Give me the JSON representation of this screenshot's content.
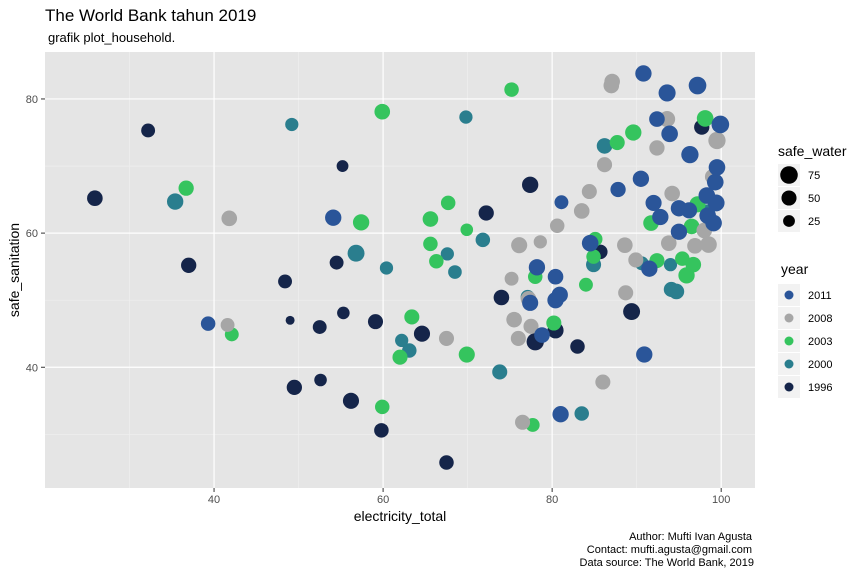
{
  "chart_data": {
    "type": "scatter",
    "title": "The World Bank tahun 2019",
    "subtitle": "grafik plot_household.",
    "xlabel": "electricity_total",
    "ylabel": "safe_sanitation",
    "xlim": [
      20,
      104
    ],
    "ylim": [
      22,
      87
    ],
    "x_ticks": [
      40,
      60,
      80,
      100
    ],
    "y_ticks": [
      40,
      60,
      80
    ],
    "grid": true,
    "legend_position": "right",
    "size_legend": {
      "title": "safe_water",
      "entries": [
        {
          "label": "75",
          "value": 75
        },
        {
          "label": "50",
          "value": 50
        },
        {
          "label": "25",
          "value": 25
        }
      ]
    },
    "color_legend": {
      "title": "year",
      "entries": [
        {
          "label": "2011",
          "color": "#2a5599"
        },
        {
          "label": "2008",
          "color": "#a6a6a6"
        },
        {
          "label": "2003",
          "color": "#35c45e"
        },
        {
          "label": "2000",
          "color": "#2a7e8e"
        },
        {
          "label": "1996",
          "color": "#15254a"
        }
      ]
    },
    "caption": [
      "Author: Mufti Ivan Agusta",
      "Contact: mufti.agusta@gmail.com",
      "Data source: The World Bank, 2019"
    ],
    "series": [
      {
        "name": "1996",
        "points": [
          {
            "x": 25.9,
            "y": 65.2,
            "size": 55
          },
          {
            "x": 32.2,
            "y": 75.3,
            "size": 40
          },
          {
            "x": 37.0,
            "y": 55.2,
            "size": 52
          },
          {
            "x": 48.4,
            "y": 52.8,
            "size": 40
          },
          {
            "x": 49.0,
            "y": 47.0,
            "size": 10
          },
          {
            "x": 49.5,
            "y": 37.0,
            "size": 52
          },
          {
            "x": 52.5,
            "y": 46.0,
            "size": 40
          },
          {
            "x": 52.6,
            "y": 38.1,
            "size": 30
          },
          {
            "x": 54.5,
            "y": 55.6,
            "size": 40
          },
          {
            "x": 55.2,
            "y": 70.0,
            "size": 25
          },
          {
            "x": 55.3,
            "y": 48.1,
            "size": 30
          },
          {
            "x": 56.2,
            "y": 35.0,
            "size": 60
          },
          {
            "x": 59.1,
            "y": 46.8,
            "size": 50
          },
          {
            "x": 59.8,
            "y": 30.6,
            "size": 45
          },
          {
            "x": 64.6,
            "y": 45.0,
            "size": 60
          },
          {
            "x": 67.5,
            "y": 25.8,
            "size": 45
          },
          {
            "x": 72.2,
            "y": 63.0,
            "size": 52
          },
          {
            "x": 74.0,
            "y": 50.4,
            "size": 55
          },
          {
            "x": 77.4,
            "y": 67.2,
            "size": 62
          },
          {
            "x": 78.0,
            "y": 43.8,
            "size": 72
          },
          {
            "x": 80.4,
            "y": 45.5,
            "size": 60
          },
          {
            "x": 83.0,
            "y": 43.1,
            "size": 45
          },
          {
            "x": 85.7,
            "y": 57.2,
            "size": 45
          },
          {
            "x": 89.4,
            "y": 48.3,
            "size": 68
          },
          {
            "x": 97.7,
            "y": 75.8,
            "size": 52
          }
        ]
      },
      {
        "name": "2000",
        "points": [
          {
            "x": 49.2,
            "y": 76.2,
            "size": 35
          },
          {
            "x": 35.4,
            "y": 64.7,
            "size": 62
          },
          {
            "x": 56.8,
            "y": 57.0,
            "size": 68
          },
          {
            "x": 60.4,
            "y": 54.8,
            "size": 35
          },
          {
            "x": 62.2,
            "y": 44.0,
            "size": 35
          },
          {
            "x": 63.1,
            "y": 42.5,
            "size": 45
          },
          {
            "x": 67.6,
            "y": 56.9,
            "size": 35
          },
          {
            "x": 68.5,
            "y": 54.2,
            "size": 38
          },
          {
            "x": 69.8,
            "y": 77.3,
            "size": 35
          },
          {
            "x": 73.8,
            "y": 39.3,
            "size": 50
          },
          {
            "x": 71.8,
            "y": 59.0,
            "size": 45
          },
          {
            "x": 77.1,
            "y": 50.5,
            "size": 40
          },
          {
            "x": 83.5,
            "y": 33.1,
            "size": 45
          },
          {
            "x": 84.9,
            "y": 55.3,
            "size": 50
          },
          {
            "x": 86.2,
            "y": 73.0,
            "size": 55
          },
          {
            "x": 90.6,
            "y": 55.5,
            "size": 40
          },
          {
            "x": 94.0,
            "y": 55.3,
            "size": 35
          },
          {
            "x": 94.1,
            "y": 51.6,
            "size": 50
          },
          {
            "x": 94.7,
            "y": 51.3,
            "size": 55
          },
          {
            "x": 98.4,
            "y": 63.2,
            "size": 45
          }
        ]
      },
      {
        "name": "2003",
        "points": [
          {
            "x": 36.7,
            "y": 66.7,
            "size": 52
          },
          {
            "x": 42.1,
            "y": 44.9,
            "size": 40
          },
          {
            "x": 57.4,
            "y": 61.6,
            "size": 62
          },
          {
            "x": 59.9,
            "y": 78.1,
            "size": 55
          },
          {
            "x": 59.9,
            "y": 34.1,
            "size": 45
          },
          {
            "x": 62.0,
            "y": 41.5,
            "size": 50
          },
          {
            "x": 63.4,
            "y": 47.5,
            "size": 50
          },
          {
            "x": 65.6,
            "y": 62.1,
            "size": 55
          },
          {
            "x": 65.6,
            "y": 58.4,
            "size": 45
          },
          {
            "x": 66.3,
            "y": 55.8,
            "size": 45
          },
          {
            "x": 67.7,
            "y": 64.5,
            "size": 45
          },
          {
            "x": 69.9,
            "y": 60.5,
            "size": 30
          },
          {
            "x": 69.9,
            "y": 41.9,
            "size": 60
          },
          {
            "x": 75.2,
            "y": 81.4,
            "size": 45
          },
          {
            "x": 77.7,
            "y": 31.4,
            "size": 40
          },
          {
            "x": 78.0,
            "y": 53.5,
            "size": 45
          },
          {
            "x": 80.2,
            "y": 46.6,
            "size": 50
          },
          {
            "x": 84.0,
            "y": 52.3,
            "size": 40
          },
          {
            "x": 84.9,
            "y": 56.5,
            "size": 45
          },
          {
            "x": 85.1,
            "y": 59.1,
            "size": 45
          },
          {
            "x": 87.7,
            "y": 73.5,
            "size": 50
          },
          {
            "x": 89.6,
            "y": 75.0,
            "size": 62
          },
          {
            "x": 91.7,
            "y": 61.5,
            "size": 55
          },
          {
            "x": 92.4,
            "y": 55.9,
            "size": 50
          },
          {
            "x": 95.4,
            "y": 56.2,
            "size": 45
          },
          {
            "x": 95.9,
            "y": 53.7,
            "size": 62
          },
          {
            "x": 96.5,
            "y": 61.0,
            "size": 55
          },
          {
            "x": 96.7,
            "y": 55.3,
            "size": 55
          },
          {
            "x": 97.2,
            "y": 64.3,
            "size": 60
          },
          {
            "x": 98.1,
            "y": 77.1,
            "size": 65
          }
        ]
      },
      {
        "name": "2008",
        "points": [
          {
            "x": 41.8,
            "y": 62.2,
            "size": 55
          },
          {
            "x": 41.6,
            "y": 46.3,
            "size": 40
          },
          {
            "x": 67.5,
            "y": 44.3,
            "size": 50
          },
          {
            "x": 75.5,
            "y": 47.1,
            "size": 55
          },
          {
            "x": 75.2,
            "y": 53.2,
            "size": 40
          },
          {
            "x": 76.1,
            "y": 58.2,
            "size": 60
          },
          {
            "x": 76.0,
            "y": 44.3,
            "size": 50
          },
          {
            "x": 76.5,
            "y": 31.8,
            "size": 50
          },
          {
            "x": 77.2,
            "y": 50.2,
            "size": 55
          },
          {
            "x": 77.5,
            "y": 46.1,
            "size": 50
          },
          {
            "x": 78.6,
            "y": 58.7,
            "size": 35
          },
          {
            "x": 80.6,
            "y": 61.1,
            "size": 45
          },
          {
            "x": 83.5,
            "y": 63.3,
            "size": 55
          },
          {
            "x": 84.4,
            "y": 66.2,
            "size": 50
          },
          {
            "x": 86.2,
            "y": 70.2,
            "size": 50
          },
          {
            "x": 86.0,
            "y": 37.8,
            "size": 50
          },
          {
            "x": 87.0,
            "y": 82.0,
            "size": 55
          },
          {
            "x": 87.1,
            "y": 82.6,
            "size": 55
          },
          {
            "x": 88.6,
            "y": 58.2,
            "size": 55
          },
          {
            "x": 88.7,
            "y": 51.1,
            "size": 50
          },
          {
            "x": 89.9,
            "y": 56.0,
            "size": 50
          },
          {
            "x": 92.4,
            "y": 72.7,
            "size": 52
          },
          {
            "x": 93.6,
            "y": 77.0,
            "size": 60
          },
          {
            "x": 93.8,
            "y": 58.5,
            "size": 55
          },
          {
            "x": 94.2,
            "y": 65.9,
            "size": 55
          },
          {
            "x": 96.9,
            "y": 58.1,
            "size": 55
          },
          {
            "x": 98.0,
            "y": 60.4,
            "size": 55
          },
          {
            "x": 98.5,
            "y": 58.3,
            "size": 65
          },
          {
            "x": 99.5,
            "y": 73.8,
            "size": 72
          },
          {
            "x": 99.0,
            "y": 68.4,
            "size": 55
          }
        ]
      },
      {
        "name": "2011",
        "points": [
          {
            "x": 39.3,
            "y": 46.5,
            "size": 45
          },
          {
            "x": 54.1,
            "y": 62.3,
            "size": 62
          },
          {
            "x": 77.4,
            "y": 49.6,
            "size": 60
          },
          {
            "x": 78.2,
            "y": 54.9,
            "size": 62
          },
          {
            "x": 78.8,
            "y": 44.8,
            "size": 55
          },
          {
            "x": 80.4,
            "y": 53.5,
            "size": 55
          },
          {
            "x": 80.4,
            "y": 50.0,
            "size": 62
          },
          {
            "x": 80.9,
            "y": 50.8,
            "size": 62
          },
          {
            "x": 81.1,
            "y": 64.6,
            "size": 40
          },
          {
            "x": 81.0,
            "y": 33.0,
            "size": 62
          },
          {
            "x": 84.5,
            "y": 58.5,
            "size": 65
          },
          {
            "x": 87.8,
            "y": 66.5,
            "size": 52
          },
          {
            "x": 90.5,
            "y": 68.1,
            "size": 62
          },
          {
            "x": 90.8,
            "y": 83.8,
            "size": 62
          },
          {
            "x": 90.9,
            "y": 41.9,
            "size": 62
          },
          {
            "x": 91.5,
            "y": 54.7,
            "size": 62
          },
          {
            "x": 92.0,
            "y": 64.5,
            "size": 60
          },
          {
            "x": 92.4,
            "y": 77.0,
            "size": 55
          },
          {
            "x": 92.8,
            "y": 62.4,
            "size": 62
          },
          {
            "x": 93.6,
            "y": 80.9,
            "size": 70
          },
          {
            "x": 93.9,
            "y": 74.8,
            "size": 65
          },
          {
            "x": 95.0,
            "y": 60.2,
            "size": 62
          },
          {
            "x": 95.0,
            "y": 63.7,
            "size": 62
          },
          {
            "x": 96.3,
            "y": 71.7,
            "size": 72
          },
          {
            "x": 97.2,
            "y": 82.0,
            "size": 76
          },
          {
            "x": 98.3,
            "y": 65.6,
            "size": 65
          },
          {
            "x": 98.4,
            "y": 62.6,
            "size": 65
          },
          {
            "x": 99.1,
            "y": 61.5,
            "size": 65
          },
          {
            "x": 99.3,
            "y": 67.6,
            "size": 65
          },
          {
            "x": 99.4,
            "y": 64.5,
            "size": 68
          },
          {
            "x": 99.5,
            "y": 69.8,
            "size": 65
          },
          {
            "x": 99.9,
            "y": 76.2,
            "size": 76
          },
          {
            "x": 96.2,
            "y": 63.4,
            "size": 60
          }
        ]
      }
    ]
  }
}
